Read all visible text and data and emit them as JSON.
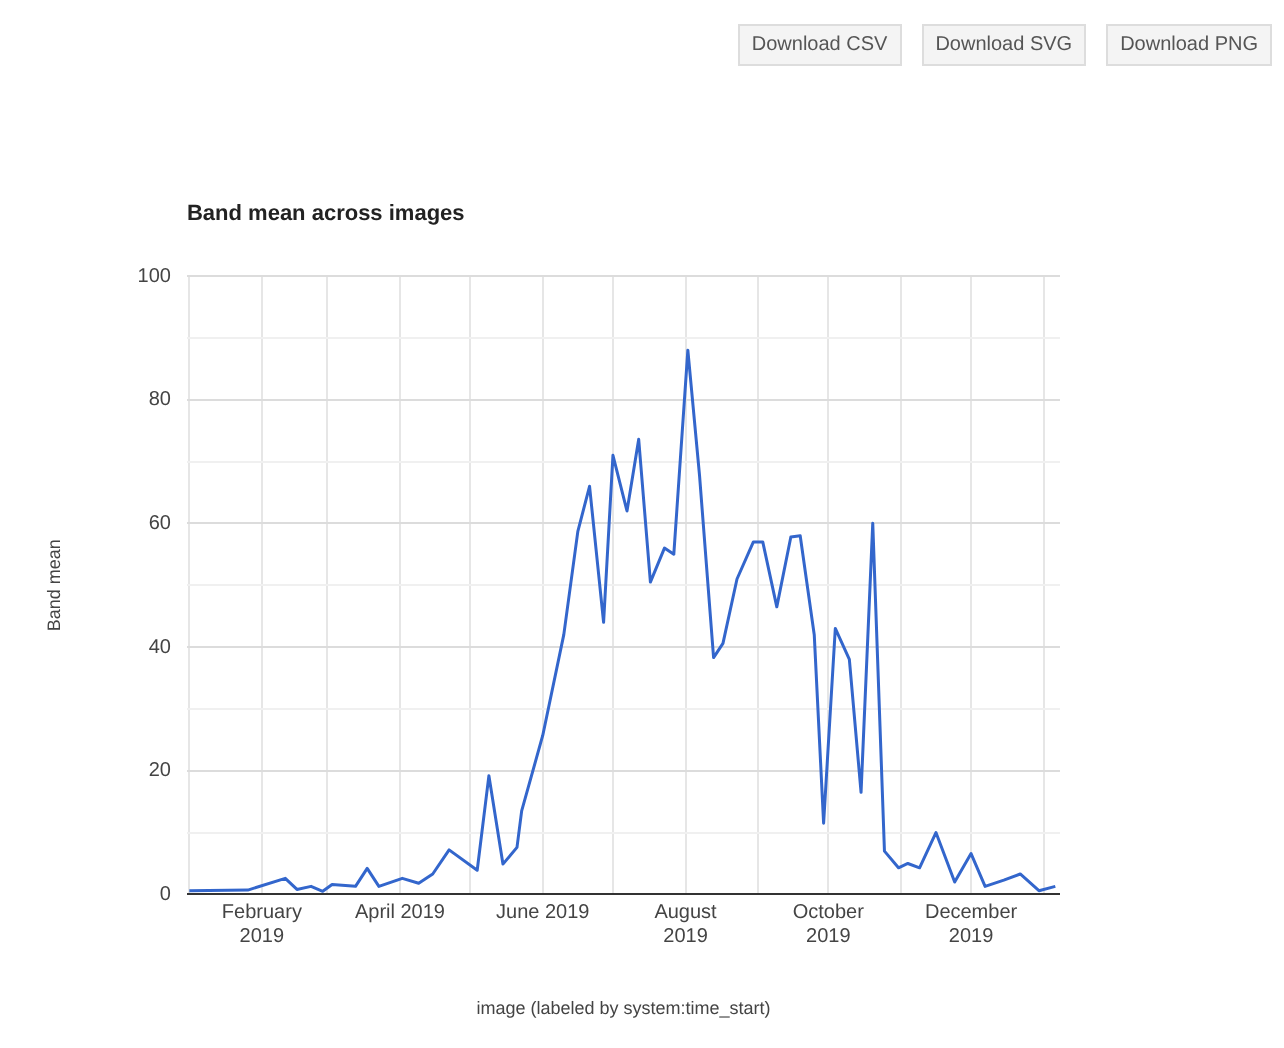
{
  "chart_data": {
    "type": "line",
    "title": "Band mean across images",
    "xlabel": "image (labeled by system:time_start)",
    "ylabel": "Band mean",
    "annotations": [
      "Download CSV",
      "Download SVG",
      "Download PNG"
    ],
    "x": [
      "2019-01-01",
      "2019-01-26",
      "2019-02-11",
      "2019-02-16",
      "2019-02-22",
      "2019-02-27",
      "2019-03-03",
      "2019-03-13",
      "2019-03-18",
      "2019-03-23",
      "2019-04-02",
      "2019-04-09",
      "2019-04-15",
      "2019-04-22",
      "2019-05-04",
      "2019-05-09",
      "2019-05-15",
      "2019-05-21",
      "2019-05-23",
      "2019-06-01",
      "2019-06-10",
      "2019-06-16",
      "2019-06-21",
      "2019-06-27",
      "2019-07-01",
      "2019-07-07",
      "2019-07-12",
      "2019-07-17",
      "2019-07-23",
      "2019-07-27",
      "2019-08-02",
      "2019-08-07",
      "2019-08-13",
      "2019-08-17",
      "2019-08-23",
      "2019-08-30",
      "2019-09-03",
      "2019-09-09",
      "2019-09-15",
      "2019-09-19",
      "2019-09-25",
      "2019-09-29",
      "2019-10-04",
      "2019-10-10",
      "2019-10-15",
      "2019-10-20",
      "2019-10-25",
      "2019-10-31",
      "2019-11-04",
      "2019-11-09",
      "2019-11-16",
      "2019-11-24",
      "2019-12-01",
      "2019-12-07",
      "2019-12-15",
      "2019-12-22",
      "2019-12-30",
      "2020-01-06"
    ],
    "series": [
      {
        "color": "#3366cc",
        "values": [
          0.6,
          0.7,
          2.6,
          0.8,
          1.3,
          0.5,
          1.6,
          1.3,
          4.2,
          1.3,
          2.6,
          1.8,
          3.3,
          7.2,
          3.9,
          19.2,
          4.9,
          7.6,
          13.5,
          25.7,
          42,
          58.7,
          66,
          44,
          71,
          62,
          73.6,
          50.5,
          56,
          55,
          88,
          67.7,
          38.3,
          40.6,
          51,
          57,
          57,
          46.5,
          57.8,
          58,
          42,
          11.5,
          43,
          38,
          16.5,
          60,
          7,
          4.3,
          5,
          4.3,
          10,
          2,
          6.6,
          1.3,
          2.3,
          3.3,
          0.6,
          1.3
        ]
      }
    ],
    "xlim": [
      "2018-12-31",
      "2020-01-08"
    ],
    "xticks": [
      {
        "value": "2019-01-01",
        "label": null
      },
      {
        "value": "2019-02-01",
        "label": "February 2019"
      },
      {
        "value": "2019-03-01",
        "label": null
      },
      {
        "value": "2019-04-01",
        "label": "April 2019"
      },
      {
        "value": "2019-05-01",
        "label": null
      },
      {
        "value": "2019-06-01",
        "label": "June 2019"
      },
      {
        "value": "2019-07-01",
        "label": null
      },
      {
        "value": "2019-08-01",
        "label": "August 2019"
      },
      {
        "value": "2019-09-01",
        "label": null
      },
      {
        "value": "2019-10-01",
        "label": "October 2019"
      },
      {
        "value": "2019-11-01",
        "label": null
      },
      {
        "value": "2019-12-01",
        "label": "December 2019"
      },
      {
        "value": "2020-01-01",
        "label": null
      }
    ],
    "ylim": [
      0,
      100
    ],
    "yticks": [
      0,
      {
        "value": 10,
        "label": null
      },
      20,
      {
        "value": 30,
        "label": null
      },
      40,
      {
        "value": 50,
        "label": null
      },
      60,
      {
        "value": 70,
        "label": null
      },
      80,
      {
        "value": 90,
        "label": null
      },
      100
    ],
    "grid": true,
    "legend": false,
    "marker": "none",
    "line_style": "solid"
  }
}
